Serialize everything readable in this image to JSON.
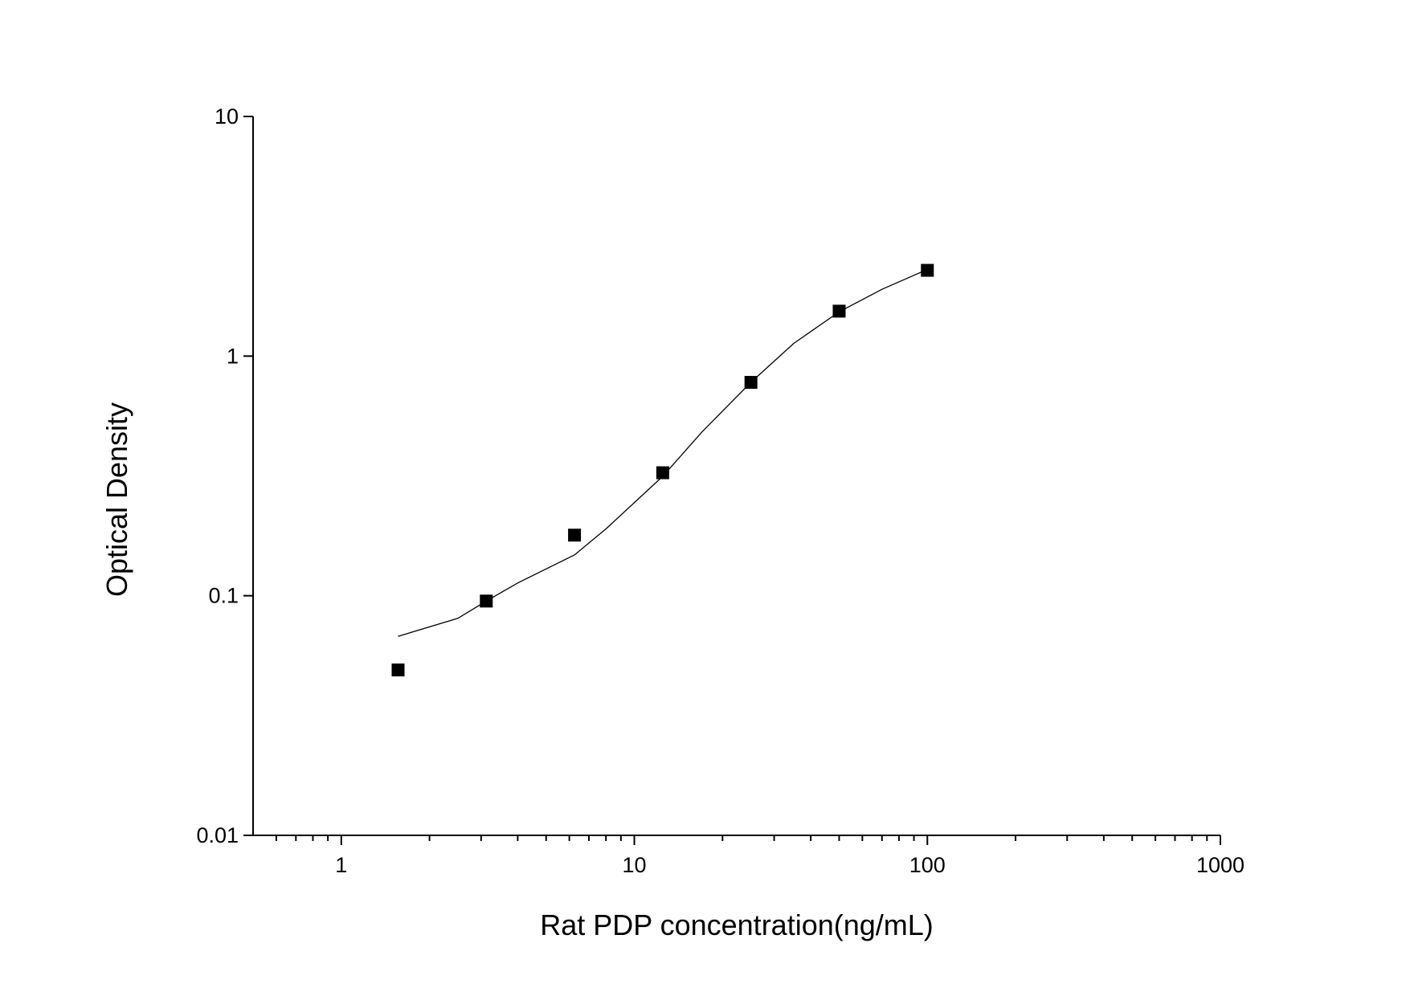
{
  "chart_data": {
    "type": "scatter",
    "x_label": "Rat PDP concentration(ng/mL)",
    "y_label": "Optical Density",
    "xscale": "log",
    "yscale": "log",
    "xlim": [
      0.5,
      1000
    ],
    "ylim": [
      0.01,
      10
    ],
    "xticks": [
      1,
      10,
      100,
      1000
    ],
    "xminorticks": [
      0.6,
      0.7,
      0.8,
      0.9,
      2,
      3,
      4,
      5,
      6,
      7,
      8,
      9,
      20,
      30,
      40,
      50,
      60,
      70,
      80,
      90,
      200,
      300,
      400,
      500,
      600,
      700,
      800,
      900
    ],
    "yticks": [
      0.01,
      0.1,
      1,
      10
    ],
    "series": [
      {
        "type": "scatter",
        "marker": "square",
        "color": "#000000",
        "x": [
          1.5625,
          3.125,
          6.25,
          12.5,
          25,
          50,
          100
        ],
        "values": [
          0.049,
          0.095,
          0.179,
          0.326,
          0.777,
          1.54,
          2.28
        ]
      },
      {
        "type": "line",
        "color": "#000000",
        "x": [
          1.5625,
          2.5,
          3.125,
          4,
          6.25,
          8,
          12.5,
          17,
          25,
          35,
          50,
          70,
          100
        ],
        "values": [
          0.0677,
          0.0805,
          0.095,
          0.113,
          0.148,
          0.19,
          0.315,
          0.482,
          0.777,
          1.13,
          1.53,
          1.9,
          2.3
        ]
      }
    ]
  }
}
